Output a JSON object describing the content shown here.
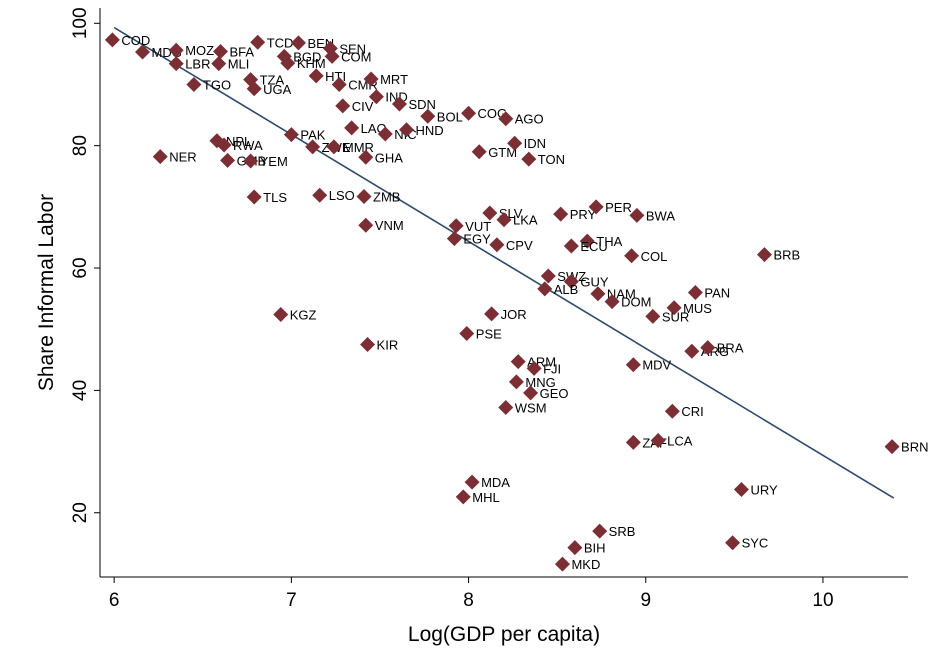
{
  "chart_data": {
    "type": "scatter",
    "xlabel": "Log(GDP per capita)",
    "ylabel": "Share Informal Labor",
    "xlim": [
      5.92,
      10.48
    ],
    "ylim": [
      9.5,
      102.5
    ],
    "xticks": [
      6,
      7,
      8,
      9,
      10
    ],
    "yticks": [
      20,
      40,
      60,
      80,
      100
    ],
    "grid": false,
    "marker_color": "#7B2F35",
    "fit_color": "#2E4A6B",
    "fit_line": {
      "x": [
        6.0,
        10.4
      ],
      "y": [
        99.3,
        22.4
      ]
    },
    "points": [
      {
        "label": "COD",
        "x": 5.99,
        "y": 97.3
      },
      {
        "label": "MDG",
        "x": 6.16,
        "y": 95.3
      },
      {
        "label": "MOZ",
        "x": 6.35,
        "y": 95.6
      },
      {
        "label": "LBR",
        "x": 6.35,
        "y": 93.4
      },
      {
        "label": "BFA",
        "x": 6.6,
        "y": 95.4
      },
      {
        "label": "MLI",
        "x": 6.59,
        "y": 93.4
      },
      {
        "label": "TCD",
        "x": 6.81,
        "y": 96.9
      },
      {
        "label": "BEN",
        "x": 7.04,
        "y": 96.8
      },
      {
        "label": "BGD",
        "x": 6.96,
        "y": 94.6
      },
      {
        "label": "KHM",
        "x": 6.98,
        "y": 93.5
      },
      {
        "label": "SEN",
        "x": 7.22,
        "y": 95.9
      },
      {
        "label": "COM",
        "x": 7.23,
        "y": 94.6
      },
      {
        "label": "TGO",
        "x": 6.45,
        "y": 90.0
      },
      {
        "label": "TZA",
        "x": 6.77,
        "y": 90.8
      },
      {
        "label": "UGA",
        "x": 6.79,
        "y": 89.3
      },
      {
        "label": "HTI",
        "x": 7.14,
        "y": 91.4
      },
      {
        "label": "CMR",
        "x": 7.27,
        "y": 90.0
      },
      {
        "label": "MRT",
        "x": 7.45,
        "y": 90.9
      },
      {
        "label": "IND",
        "x": 7.48,
        "y": 88.0
      },
      {
        "label": "CIV",
        "x": 7.29,
        "y": 86.5
      },
      {
        "label": "SDN",
        "x": 7.61,
        "y": 86.8
      },
      {
        "label": "BOL",
        "x": 7.77,
        "y": 84.8
      },
      {
        "label": "COG",
        "x": 8.0,
        "y": 85.3
      },
      {
        "label": "AGO",
        "x": 8.21,
        "y": 84.4
      },
      {
        "label": "LAO",
        "x": 7.34,
        "y": 82.9
      },
      {
        "label": "NIC",
        "x": 7.53,
        "y": 81.9
      },
      {
        "label": "HND",
        "x": 7.65,
        "y": 82.6
      },
      {
        "label": "PAK",
        "x": 7.0,
        "y": 81.8
      },
      {
        "label": "ZWE",
        "x": 7.12,
        "y": 79.8
      },
      {
        "label": "MMR",
        "x": 7.24,
        "y": 79.8
      },
      {
        "label": "NPL",
        "x": 6.58,
        "y": 80.8
      },
      {
        "label": "RWA",
        "x": 6.62,
        "y": 80.1
      },
      {
        "label": "GMB",
        "x": 6.64,
        "y": 77.6
      },
      {
        "label": "YEM",
        "x": 6.77,
        "y": 77.5
      },
      {
        "label": "GHA",
        "x": 7.42,
        "y": 78.1
      },
      {
        "label": "NER",
        "x": 6.26,
        "y": 78.2
      },
      {
        "label": "GTM",
        "x": 8.06,
        "y": 79.0
      },
      {
        "label": "IDN",
        "x": 8.26,
        "y": 80.4
      },
      {
        "label": "TON",
        "x": 8.34,
        "y": 77.8
      },
      {
        "label": "TLS",
        "x": 6.79,
        "y": 71.6
      },
      {
        "label": "LSO",
        "x": 7.16,
        "y": 71.9
      },
      {
        "label": "ZMB",
        "x": 7.41,
        "y": 71.7
      },
      {
        "label": "VNM",
        "x": 7.42,
        "y": 67.0
      },
      {
        "label": "SLV",
        "x": 8.12,
        "y": 69.0
      },
      {
        "label": "LKA",
        "x": 8.2,
        "y": 67.9
      },
      {
        "label": "VUT",
        "x": 7.93,
        "y": 66.9
      },
      {
        "label": "EGY",
        "x": 7.92,
        "y": 64.8
      },
      {
        "label": "CPV",
        "x": 8.16,
        "y": 63.8
      },
      {
        "label": "PRY",
        "x": 8.52,
        "y": 68.8
      },
      {
        "label": "PER",
        "x": 8.72,
        "y": 70.0
      },
      {
        "label": "BWA",
        "x": 8.95,
        "y": 68.6
      },
      {
        "label": "THA",
        "x": 8.67,
        "y": 64.4
      },
      {
        "label": "ECU",
        "x": 8.58,
        "y": 63.6
      },
      {
        "label": "COL",
        "x": 8.92,
        "y": 62.0
      },
      {
        "label": "BRB",
        "x": 9.67,
        "y": 62.2
      },
      {
        "label": "SWZ",
        "x": 8.45,
        "y": 58.7
      },
      {
        "label": "GUY",
        "x": 8.58,
        "y": 57.8
      },
      {
        "label": "ALB",
        "x": 8.43,
        "y": 56.6
      },
      {
        "label": "NAM",
        "x": 8.73,
        "y": 55.8
      },
      {
        "label": "DOM",
        "x": 8.81,
        "y": 54.5
      },
      {
        "label": "PAN",
        "x": 9.28,
        "y": 56.0
      },
      {
        "label": "MUS",
        "x": 9.16,
        "y": 53.5
      },
      {
        "label": "SUR",
        "x": 9.04,
        "y": 52.1
      },
      {
        "label": "KGZ",
        "x": 6.94,
        "y": 52.4
      },
      {
        "label": "JOR",
        "x": 8.13,
        "y": 52.5
      },
      {
        "label": "PSE",
        "x": 7.99,
        "y": 49.3
      },
      {
        "label": "KIR",
        "x": 7.43,
        "y": 47.5
      },
      {
        "label": "ARM",
        "x": 8.28,
        "y": 44.7
      },
      {
        "label": "FJI",
        "x": 8.37,
        "y": 43.6
      },
      {
        "label": "MNG",
        "x": 8.27,
        "y": 41.4
      },
      {
        "label": "GEO",
        "x": 8.35,
        "y": 39.6
      },
      {
        "label": "WSM",
        "x": 8.21,
        "y": 37.2
      },
      {
        "label": "MDV",
        "x": 8.93,
        "y": 44.2
      },
      {
        "label": "ARG",
        "x": 9.26,
        "y": 46.4
      },
      {
        "label": "BRA",
        "x": 9.35,
        "y": 47.0
      },
      {
        "label": "CRI",
        "x": 9.15,
        "y": 36.6
      },
      {
        "label": "ZAF",
        "x": 8.93,
        "y": 31.5
      },
      {
        "label": "LCA",
        "x": 9.07,
        "y": 31.8
      },
      {
        "label": "BRN",
        "x": 10.39,
        "y": 30.8
      },
      {
        "label": "MDA",
        "x": 8.02,
        "y": 25.0
      },
      {
        "label": "MHL",
        "x": 7.97,
        "y": 22.6
      },
      {
        "label": "URY",
        "x": 9.54,
        "y": 23.8
      },
      {
        "label": "SRB",
        "x": 8.74,
        "y": 17.0
      },
      {
        "label": "BIH",
        "x": 8.6,
        "y": 14.3
      },
      {
        "label": "SYC",
        "x": 9.49,
        "y": 15.1
      },
      {
        "label": "MKD",
        "x": 8.53,
        "y": 11.6
      }
    ]
  }
}
